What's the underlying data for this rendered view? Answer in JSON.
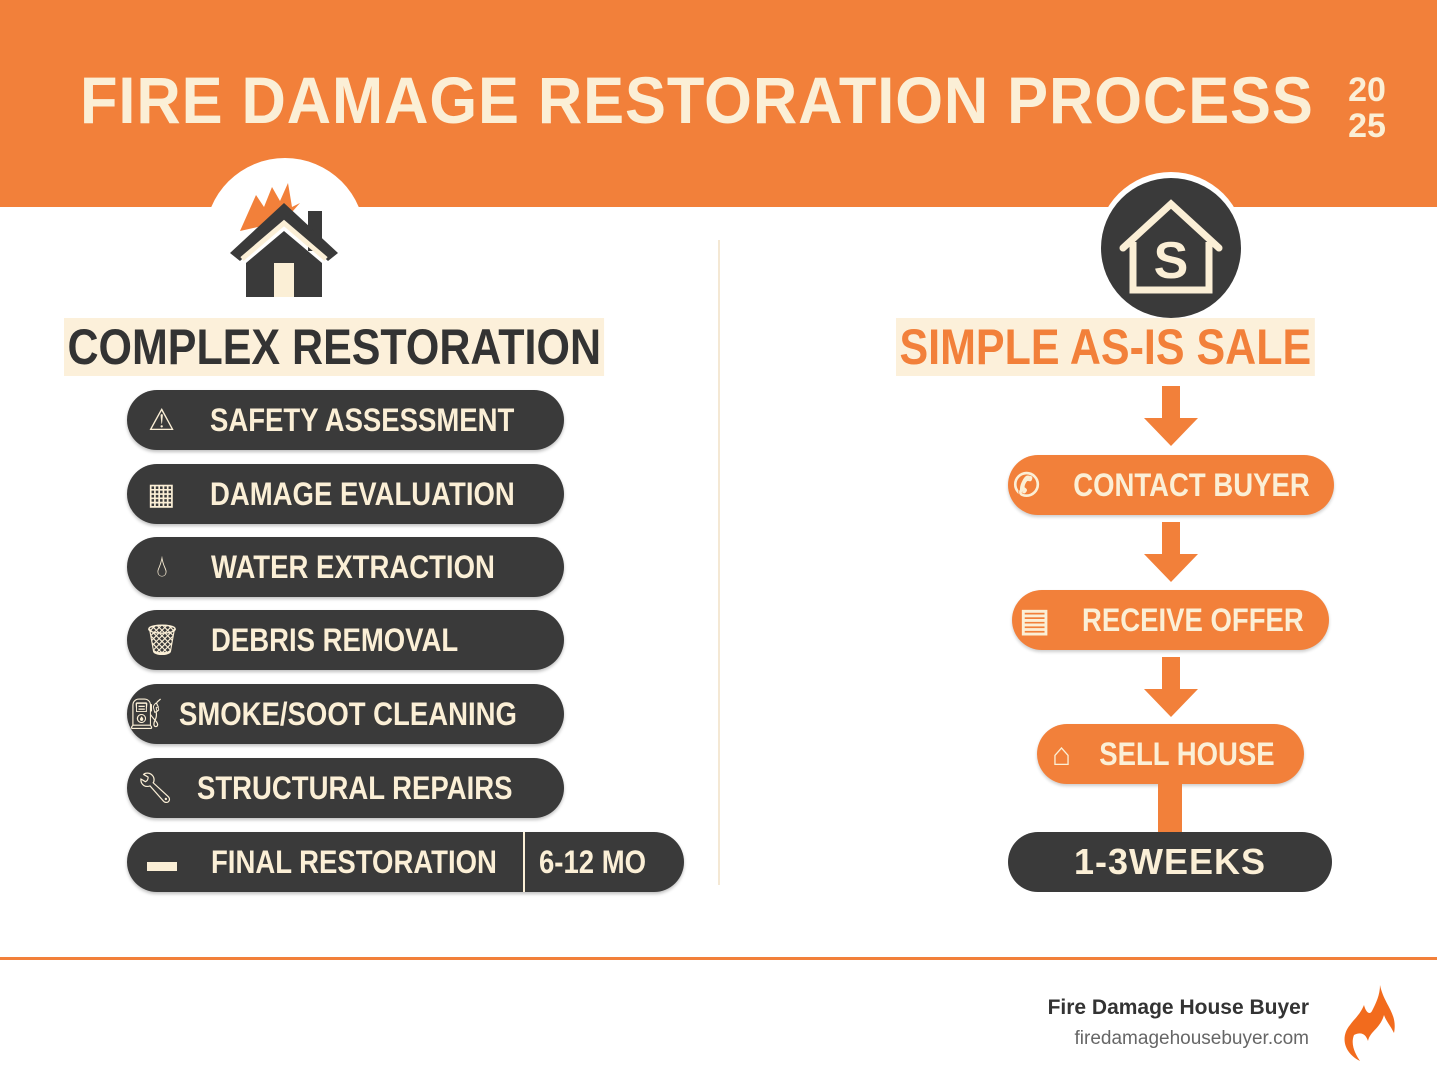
{
  "header": {
    "title": "FIRE DAMAGE RESTORATION PROCESS",
    "year_top": "20",
    "year_bottom": "25"
  },
  "left": {
    "heading": "COMPLEX RESTORATION",
    "icon": "burning-house-icon",
    "steps": [
      {
        "label": "SAFETY ASSESSMENT",
        "icon": "warning-icon"
      },
      {
        "label": "DAMAGE EVALUATION",
        "icon": "grid-icon"
      },
      {
        "label": "WATER EXTRACTION",
        "icon": "water-drop-icon"
      },
      {
        "label": "DEBRIS REMOVAL",
        "icon": "trash-icon"
      },
      {
        "label": "SMOKE/SOOT CLEANING",
        "icon": "spray-bottle-icon"
      },
      {
        "label": "STRUCTURAL REPAIRS",
        "icon": "wrench-icon"
      },
      {
        "label": "FINAL RESTORATION",
        "icon": "paint-roller-icon"
      }
    ],
    "duration": "6-12 MO"
  },
  "right": {
    "heading": "SIMPLE AS-IS SALE",
    "icon": "house-dollar-icon",
    "steps": [
      {
        "label": "CONTACT BUYER",
        "icon": "phone-icon"
      },
      {
        "label": "RECEIVE OFFER",
        "icon": "document-icon"
      },
      {
        "label": "SELL HOUSE",
        "icon": "home-icon"
      }
    ],
    "duration": "1-3WEEKS"
  },
  "footer": {
    "company": "Fire Damage House Buyer",
    "url": "firedamagehousebuyer.com",
    "logo": "flame-logo"
  },
  "colors": {
    "accent": "#F2803A",
    "dark": "#3A3A3A",
    "cream": "#FBEFD6"
  }
}
